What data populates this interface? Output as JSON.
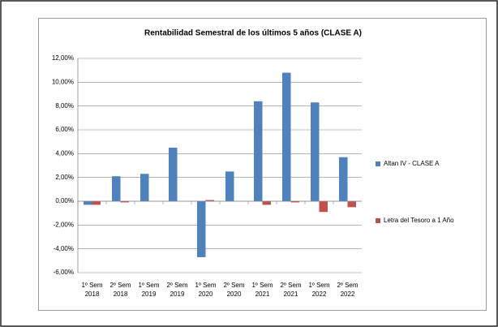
{
  "chart_data": {
    "type": "bar",
    "title": "Rentabilidad Semestral de los últimos 5 años (CLASE A)",
    "categories": [
      [
        "1º Sem",
        "2018"
      ],
      [
        "2º Sem",
        "2018"
      ],
      [
        "1º Sem",
        "2019"
      ],
      [
        "2º Sem",
        "2019"
      ],
      [
        "1º Sem",
        "2020"
      ],
      [
        "2º Sem",
        "2020"
      ],
      [
        "1º Sem",
        "2021"
      ],
      [
        "2º Sem",
        "2021"
      ],
      [
        "1º Sem",
        "2022"
      ],
      [
        "2º Sem",
        "2022"
      ]
    ],
    "series": [
      {
        "name": "Altan IV - CLASE A",
        "color": "#4f81bd",
        "values": [
          -0.3,
          2.1,
          2.3,
          4.5,
          -4.7,
          2.5,
          8.4,
          10.8,
          8.3,
          3.7
        ]
      },
      {
        "name": "Letra del Tesoro a 1 Año",
        "color": "#c0504d",
        "values": [
          -0.3,
          -0.1,
          0,
          0,
          0.1,
          0,
          -0.3,
          -0.1,
          -0.9,
          -0.5
        ]
      }
    ],
    "ylim": [
      -6,
      12
    ],
    "yticks": [
      {
        "value": -6,
        "label": "-6,00%"
      },
      {
        "value": -4,
        "label": "-4,00%"
      },
      {
        "value": -2,
        "label": "-2,00%"
      },
      {
        "value": 0,
        "label": "0,00%"
      },
      {
        "value": 2,
        "label": "2,00%"
      },
      {
        "value": 4,
        "label": "4,00%"
      },
      {
        "value": 6,
        "label": "6,00%"
      },
      {
        "value": 8,
        "label": "8,00%"
      },
      {
        "value": 10,
        "label": "10,00%"
      },
      {
        "value": 12,
        "label": "12,00%"
      }
    ],
    "grid": true,
    "legend": "right"
  }
}
